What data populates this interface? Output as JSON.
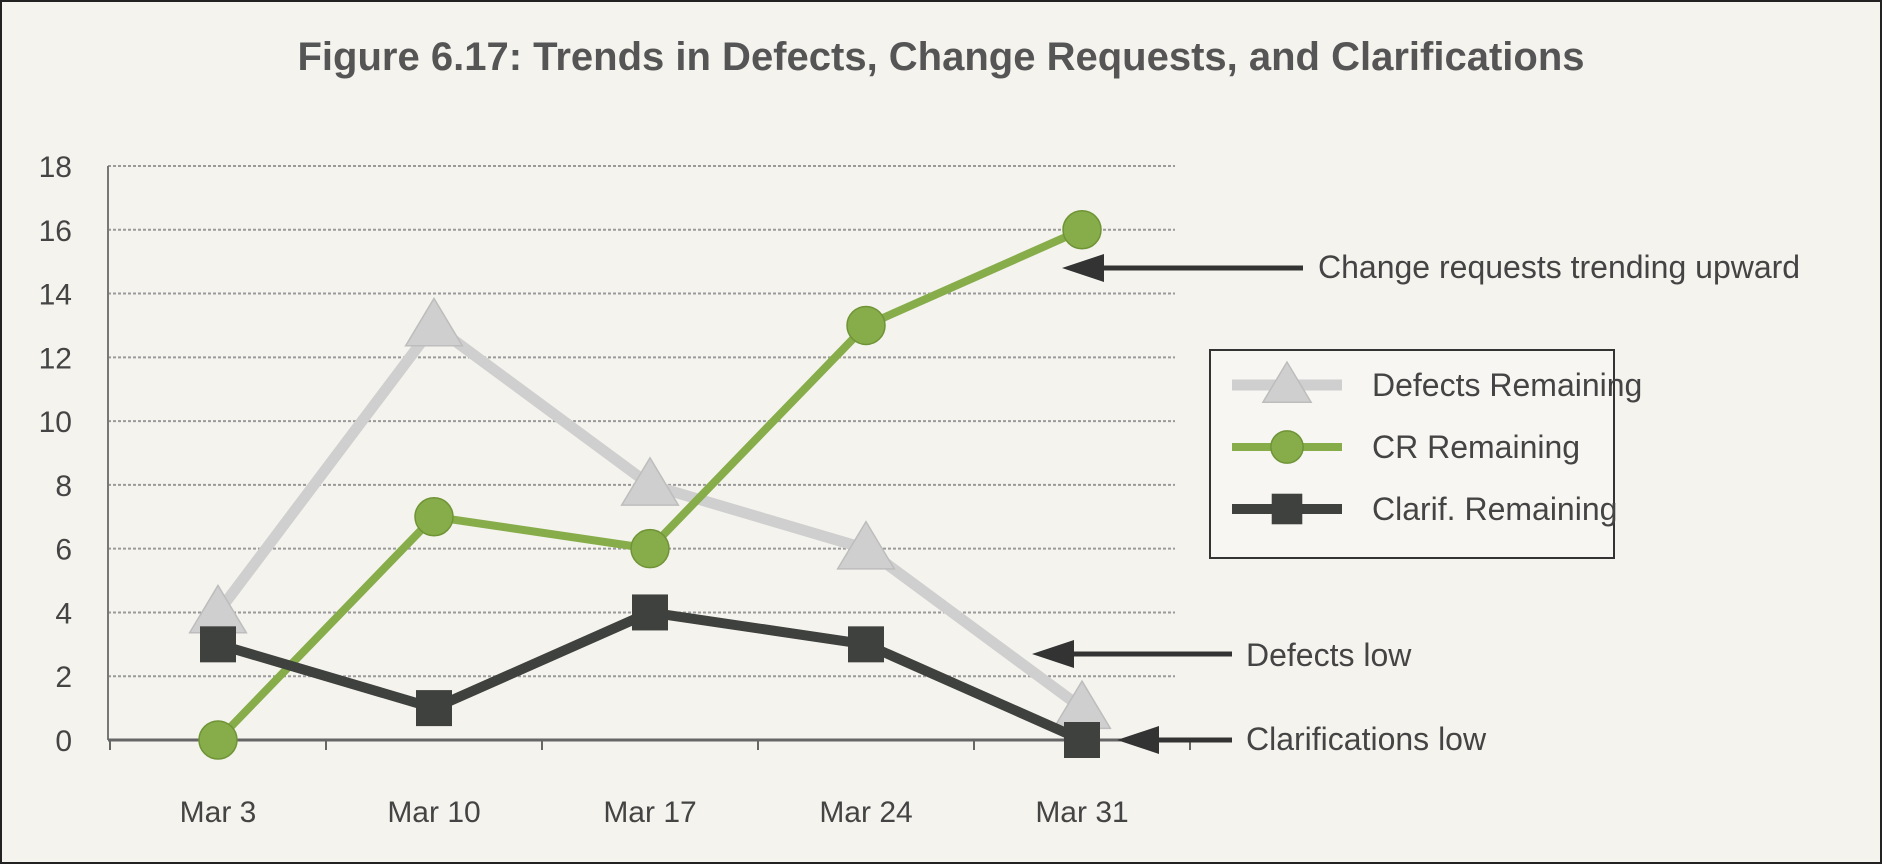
{
  "chart_data": {
    "type": "line",
    "title": "Figure 6.17: Trends in Defects, Change Requests, and Clarifications",
    "categories": [
      "Mar 3",
      "Mar 10",
      "Mar 17",
      "Mar 24",
      "Mar 31"
    ],
    "ylim": [
      0,
      18
    ],
    "yticks": [
      "0",
      "2",
      "4",
      "6",
      "8",
      "10",
      "12",
      "14",
      "16",
      "18"
    ],
    "grid": true,
    "legend_position": "right",
    "series": [
      {
        "name": "Defects Remaining",
        "values": [
          4,
          13,
          8,
          6,
          1
        ],
        "color": "#cfcfcf",
        "marker": "triangle"
      },
      {
        "name": "CR Remaining",
        "values": [
          0,
          7,
          6,
          13,
          16
        ],
        "color": "#86ad4a",
        "marker": "circle"
      },
      {
        "name": "Clarif. Remaining",
        "values": [
          3,
          1,
          4,
          3,
          0
        ],
        "color": "#3f413e",
        "marker": "square"
      }
    ],
    "annotations": [
      {
        "text": "Change requests trending upward",
        "series": 1,
        "category": 4
      },
      {
        "text": "Defects low",
        "series": 0,
        "category": 4
      },
      {
        "text": "Clarifications low",
        "series": 2,
        "category": 4
      }
    ]
  }
}
